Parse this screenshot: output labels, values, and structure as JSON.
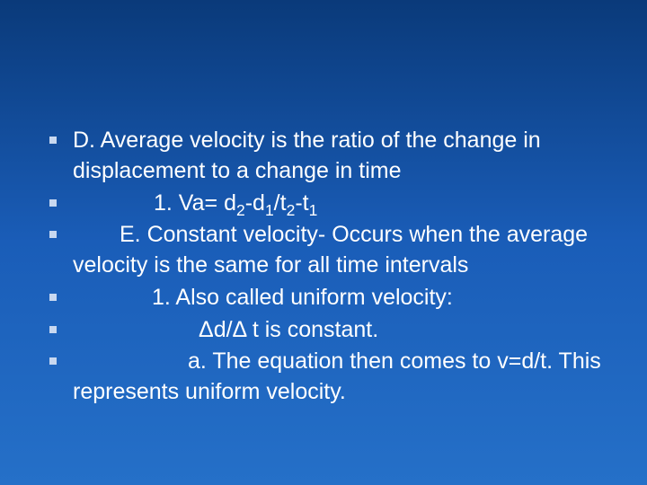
{
  "slide": {
    "background_gradient": [
      "#0a3a7a",
      "#1a5db8",
      "#2570c8"
    ],
    "text_color": "#ffffff",
    "bullet_color": "#c8d8f0",
    "font_family": "Verdana",
    "font_size_pt": 25,
    "items": [
      {
        "text_html": "D. Average velocity is the ratio of the change in displacement to a change in time",
        "indent_class": ""
      },
      {
        "text_html": "1. Va= d<sub>2</sub>-d<sub>1</sub>/t<sub>2</sub>-t<sub>1</sub>",
        "indent_class": "indent1"
      },
      {
        "text_html": "E. Constant velocity- Occurs when the average velocity is the same for all time intervals",
        "indent_class": "indent1b",
        "hang": true
      },
      {
        "text_html": "1. Also called uniform velocity:",
        "indent_class": "indent2"
      },
      {
        "text_html": "Δd/Δ t is constant.",
        "indent_class": "indent3"
      },
      {
        "text_html": "a. The equation then comes to v=d/t. This represents uniform velocity.",
        "indent_class": "indent4",
        "hang": true
      }
    ]
  }
}
